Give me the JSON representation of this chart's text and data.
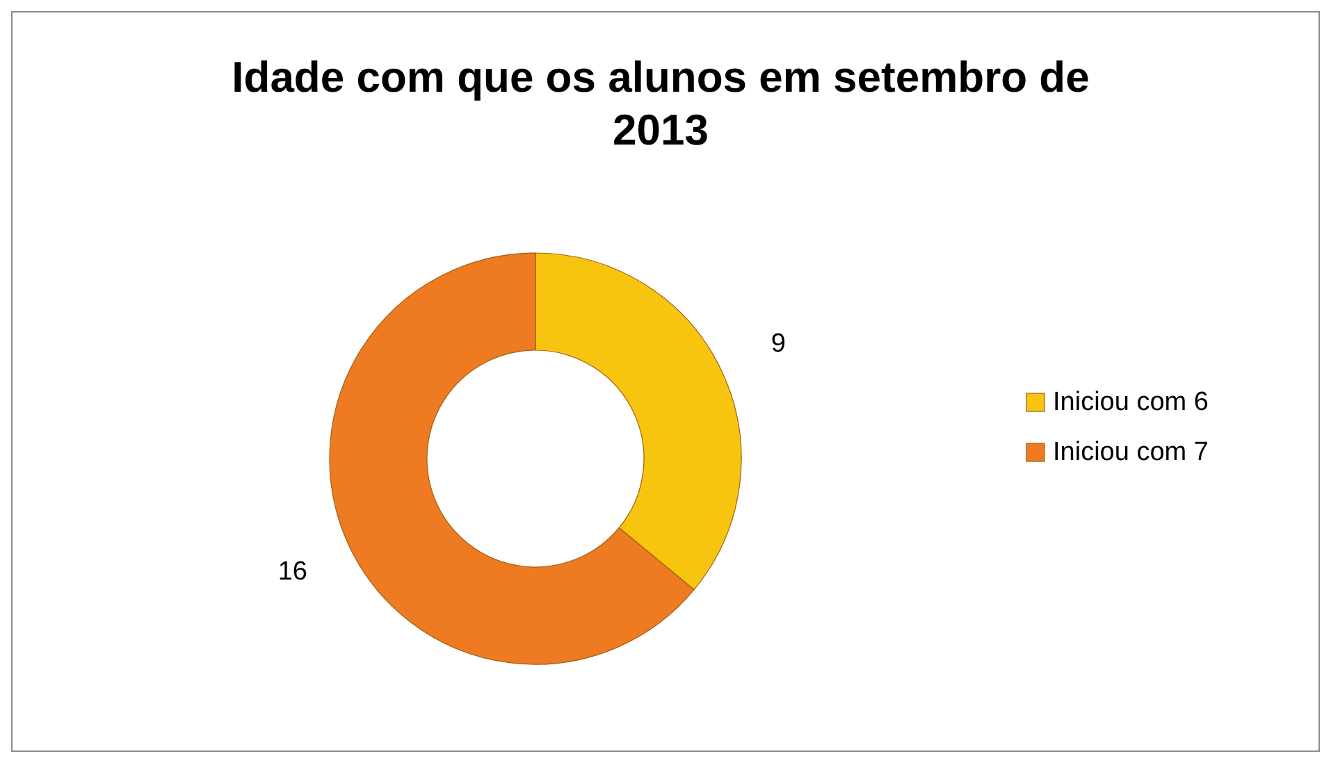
{
  "chart_data": {
    "type": "donut",
    "title": "Idade com que os alunos em setembro de 2013",
    "categories": [
      "Iniciou com 6",
      "Iniciou com 7"
    ],
    "values": [
      9,
      16
    ],
    "colors": [
      "#f7c410",
      "#ee7a22"
    ],
    "data_labels": true,
    "legend": "right"
  }
}
